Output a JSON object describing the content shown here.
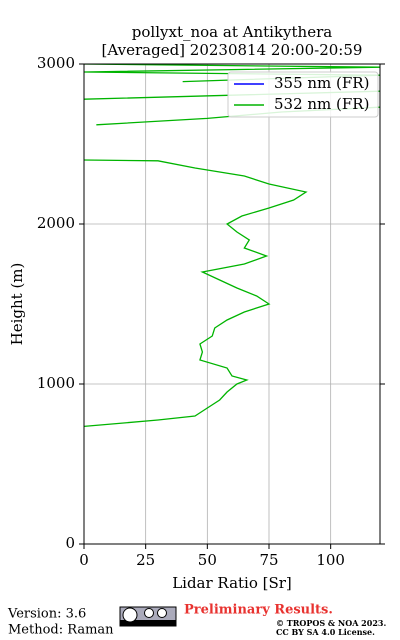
{
  "chart_data": {
    "type": "line",
    "title": "pollyxt_noa at Antikythera",
    "subtitle": "[Averaged] 20230814 20:00-20:59",
    "x_label": "Lidar Ratio [Sr]",
    "y_label": "Height (m)",
    "xlim": [
      0,
      120
    ],
    "ylim": [
      0,
      3000
    ],
    "xticks": [
      0,
      25,
      50,
      75,
      100
    ],
    "yticks": [
      0,
      1000,
      2000,
      3000
    ],
    "grid": true,
    "legend": "upper right",
    "heights": [
      735,
      775,
      800,
      850,
      900,
      950,
      1000,
      1025,
      1050,
      1100,
      1150,
      1200,
      1250,
      1300,
      1350,
      1400,
      1450,
      1500,
      1550,
      1600,
      1650,
      1700,
      1750,
      1800,
      1850,
      1900,
      1950,
      2000,
      2050,
      2100,
      2150,
      2200,
      2250,
      2300,
      2350,
      2395,
      2400,
      2580,
      2620,
      2660,
      2700,
      2730,
      2760,
      2780,
      2830,
      2870,
      2890,
      2930,
      2950,
      2980,
      3000
    ],
    "series": [
      {
        "name": "355 nm (FR)",
        "color": "#0000ff",
        "values": [
          null,
          null,
          null,
          null,
          null,
          null,
          null,
          null,
          null,
          null,
          null,
          null,
          null,
          null,
          null,
          null,
          null,
          null,
          null,
          null,
          null,
          null,
          null,
          null,
          null,
          null,
          null,
          null,
          null,
          null,
          null,
          null,
          null,
          null,
          null,
          null,
          null,
          null,
          null,
          null,
          null,
          null,
          null,
          null,
          null,
          null,
          null,
          null,
          null,
          null,
          null
        ]
      },
      {
        "name": "532 nm (FR)",
        "color": "#00b400",
        "values": [
          0,
          30,
          45,
          50,
          55,
          58,
          62,
          66,
          60,
          58,
          47,
          48,
          47,
          52,
          53,
          58,
          65,
          75,
          70,
          62,
          55,
          48,
          65,
          74,
          65,
          67,
          62,
          58,
          64,
          75,
          85,
          90,
          75,
          65,
          45,
          30,
          0,
          null,
          5,
          50,
          80,
          120,
          null,
          0,
          120,
          null,
          40,
          120,
          0,
          120,
          0
        ]
      }
    ]
  },
  "footer": {
    "version": "Version: 3.6",
    "method": "Method: Raman",
    "preliminary": "Preliminary Results.",
    "copyright": "© TROPOS & NOA 2023.",
    "license": "CC BY SA 4.0 License."
  }
}
